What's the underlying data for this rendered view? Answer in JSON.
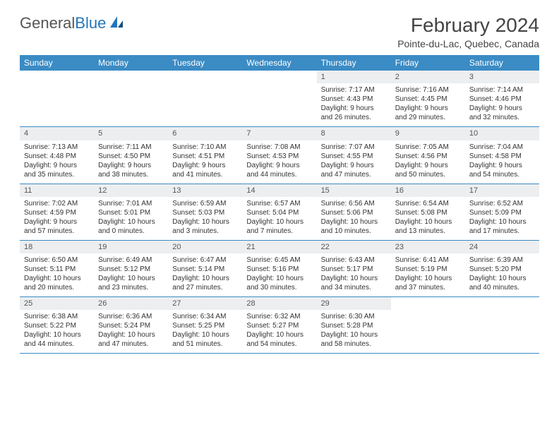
{
  "brand": {
    "text1": "General",
    "text2": "Blue"
  },
  "title": "February 2024",
  "location": "Pointe-du-Lac, Quebec, Canada",
  "colors": {
    "header_bar": "#3b8bc4",
    "day_num_bg": "#eceef0",
    "text": "#333333",
    "brand_gray": "#555555",
    "brand_blue": "#2276bb"
  },
  "weekdays": [
    "Sunday",
    "Monday",
    "Tuesday",
    "Wednesday",
    "Thursday",
    "Friday",
    "Saturday"
  ],
  "weeks": [
    [
      null,
      null,
      null,
      null,
      {
        "n": "1",
        "sr": "Sunrise: 7:17 AM",
        "ss": "Sunset: 4:43 PM",
        "d1": "Daylight: 9 hours",
        "d2": "and 26 minutes."
      },
      {
        "n": "2",
        "sr": "Sunrise: 7:16 AM",
        "ss": "Sunset: 4:45 PM",
        "d1": "Daylight: 9 hours",
        "d2": "and 29 minutes."
      },
      {
        "n": "3",
        "sr": "Sunrise: 7:14 AM",
        "ss": "Sunset: 4:46 PM",
        "d1": "Daylight: 9 hours",
        "d2": "and 32 minutes."
      }
    ],
    [
      {
        "n": "4",
        "sr": "Sunrise: 7:13 AM",
        "ss": "Sunset: 4:48 PM",
        "d1": "Daylight: 9 hours",
        "d2": "and 35 minutes."
      },
      {
        "n": "5",
        "sr": "Sunrise: 7:11 AM",
        "ss": "Sunset: 4:50 PM",
        "d1": "Daylight: 9 hours",
        "d2": "and 38 minutes."
      },
      {
        "n": "6",
        "sr": "Sunrise: 7:10 AM",
        "ss": "Sunset: 4:51 PM",
        "d1": "Daylight: 9 hours",
        "d2": "and 41 minutes."
      },
      {
        "n": "7",
        "sr": "Sunrise: 7:08 AM",
        "ss": "Sunset: 4:53 PM",
        "d1": "Daylight: 9 hours",
        "d2": "and 44 minutes."
      },
      {
        "n": "8",
        "sr": "Sunrise: 7:07 AM",
        "ss": "Sunset: 4:55 PM",
        "d1": "Daylight: 9 hours",
        "d2": "and 47 minutes."
      },
      {
        "n": "9",
        "sr": "Sunrise: 7:05 AM",
        "ss": "Sunset: 4:56 PM",
        "d1": "Daylight: 9 hours",
        "d2": "and 50 minutes."
      },
      {
        "n": "10",
        "sr": "Sunrise: 7:04 AM",
        "ss": "Sunset: 4:58 PM",
        "d1": "Daylight: 9 hours",
        "d2": "and 54 minutes."
      }
    ],
    [
      {
        "n": "11",
        "sr": "Sunrise: 7:02 AM",
        "ss": "Sunset: 4:59 PM",
        "d1": "Daylight: 9 hours",
        "d2": "and 57 minutes."
      },
      {
        "n": "12",
        "sr": "Sunrise: 7:01 AM",
        "ss": "Sunset: 5:01 PM",
        "d1": "Daylight: 10 hours",
        "d2": "and 0 minutes."
      },
      {
        "n": "13",
        "sr": "Sunrise: 6:59 AM",
        "ss": "Sunset: 5:03 PM",
        "d1": "Daylight: 10 hours",
        "d2": "and 3 minutes."
      },
      {
        "n": "14",
        "sr": "Sunrise: 6:57 AM",
        "ss": "Sunset: 5:04 PM",
        "d1": "Daylight: 10 hours",
        "d2": "and 7 minutes."
      },
      {
        "n": "15",
        "sr": "Sunrise: 6:56 AM",
        "ss": "Sunset: 5:06 PM",
        "d1": "Daylight: 10 hours",
        "d2": "and 10 minutes."
      },
      {
        "n": "16",
        "sr": "Sunrise: 6:54 AM",
        "ss": "Sunset: 5:08 PM",
        "d1": "Daylight: 10 hours",
        "d2": "and 13 minutes."
      },
      {
        "n": "17",
        "sr": "Sunrise: 6:52 AM",
        "ss": "Sunset: 5:09 PM",
        "d1": "Daylight: 10 hours",
        "d2": "and 17 minutes."
      }
    ],
    [
      {
        "n": "18",
        "sr": "Sunrise: 6:50 AM",
        "ss": "Sunset: 5:11 PM",
        "d1": "Daylight: 10 hours",
        "d2": "and 20 minutes."
      },
      {
        "n": "19",
        "sr": "Sunrise: 6:49 AM",
        "ss": "Sunset: 5:12 PM",
        "d1": "Daylight: 10 hours",
        "d2": "and 23 minutes."
      },
      {
        "n": "20",
        "sr": "Sunrise: 6:47 AM",
        "ss": "Sunset: 5:14 PM",
        "d1": "Daylight: 10 hours",
        "d2": "and 27 minutes."
      },
      {
        "n": "21",
        "sr": "Sunrise: 6:45 AM",
        "ss": "Sunset: 5:16 PM",
        "d1": "Daylight: 10 hours",
        "d2": "and 30 minutes."
      },
      {
        "n": "22",
        "sr": "Sunrise: 6:43 AM",
        "ss": "Sunset: 5:17 PM",
        "d1": "Daylight: 10 hours",
        "d2": "and 34 minutes."
      },
      {
        "n": "23",
        "sr": "Sunrise: 6:41 AM",
        "ss": "Sunset: 5:19 PM",
        "d1": "Daylight: 10 hours",
        "d2": "and 37 minutes."
      },
      {
        "n": "24",
        "sr": "Sunrise: 6:39 AM",
        "ss": "Sunset: 5:20 PM",
        "d1": "Daylight: 10 hours",
        "d2": "and 40 minutes."
      }
    ],
    [
      {
        "n": "25",
        "sr": "Sunrise: 6:38 AM",
        "ss": "Sunset: 5:22 PM",
        "d1": "Daylight: 10 hours",
        "d2": "and 44 minutes."
      },
      {
        "n": "26",
        "sr": "Sunrise: 6:36 AM",
        "ss": "Sunset: 5:24 PM",
        "d1": "Daylight: 10 hours",
        "d2": "and 47 minutes."
      },
      {
        "n": "27",
        "sr": "Sunrise: 6:34 AM",
        "ss": "Sunset: 5:25 PM",
        "d1": "Daylight: 10 hours",
        "d2": "and 51 minutes."
      },
      {
        "n": "28",
        "sr": "Sunrise: 6:32 AM",
        "ss": "Sunset: 5:27 PM",
        "d1": "Daylight: 10 hours",
        "d2": "and 54 minutes."
      },
      {
        "n": "29",
        "sr": "Sunrise: 6:30 AM",
        "ss": "Sunset: 5:28 PM",
        "d1": "Daylight: 10 hours",
        "d2": "and 58 minutes."
      },
      null,
      null
    ]
  ]
}
